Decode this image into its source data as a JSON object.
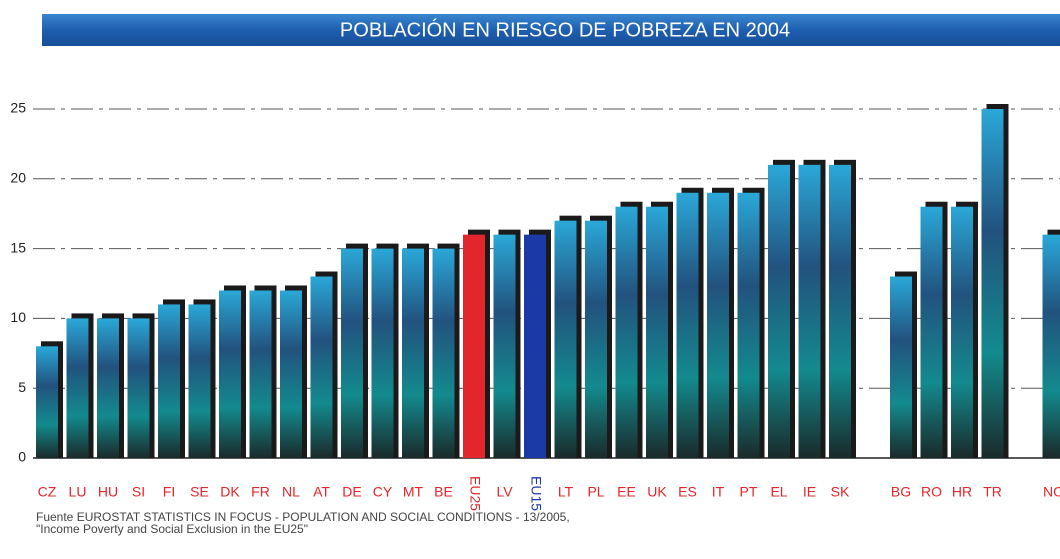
{
  "chart_data": {
    "type": "bar",
    "title": "POBLACIÓN EN RIESGO DE POBREZA EN 2004",
    "categories": [
      "CZ",
      "LU",
      "HU",
      "SI",
      "FI",
      "SE",
      "DK",
      "FR",
      "NL",
      "AT",
      "DE",
      "CY",
      "MT",
      "BE",
      "EU25",
      "LV",
      "EU15",
      "LT",
      "PL",
      "EE",
      "UK",
      "ES",
      "IT",
      "PT",
      "EL",
      "IE",
      "SK",
      null,
      "BG",
      "RO",
      "HR",
      "TR",
      null,
      "NO"
    ],
    "values": [
      8,
      10,
      10,
      10,
      11,
      11,
      12,
      12,
      12,
      13,
      15,
      15,
      15,
      15,
      16,
      16,
      16,
      17,
      17,
      18,
      18,
      19,
      19,
      19,
      21,
      21,
      21,
      null,
      13,
      18,
      18,
      25,
      null,
      16
    ],
    "color": "#1d8096",
    "colors": [
      "#1d8096",
      "#1d8096",
      "#1d8096",
      "#1d8096",
      "#1d8096",
      "#1d8096",
      "#1d8096",
      "#1d8096",
      "#1d8096",
      "#1d8096",
      "#1d8096",
      "#1d8096",
      "#1d8096",
      "#1d8096",
      "#e3262b",
      "#1d8096",
      "#1c3aa6",
      "#1d8096",
      "#1d8096",
      "#1d8096",
      "#1d8096",
      "#1d8096",
      "#1d8096",
      "#1d8096",
      "#1d8096",
      "#1d8096",
      "#1d8096",
      null,
      "#1d8096",
      "#1d8096",
      "#1d8096",
      "#1d8096",
      null,
      "#1d8096"
    ],
    "label_color": "#e3262b",
    "ylim": [
      0,
      25
    ],
    "yticks": [
      0,
      5,
      10,
      15,
      20,
      25
    ],
    "grid": true,
    "source": [
      "Fuente EUROSTAT STATISTICS IN FOCUS - POPULATION AND SOCIAL CONDITIONS - 13/2005,",
      "\"Income Poverty and Social Exclusion in the EU25\""
    ]
  }
}
